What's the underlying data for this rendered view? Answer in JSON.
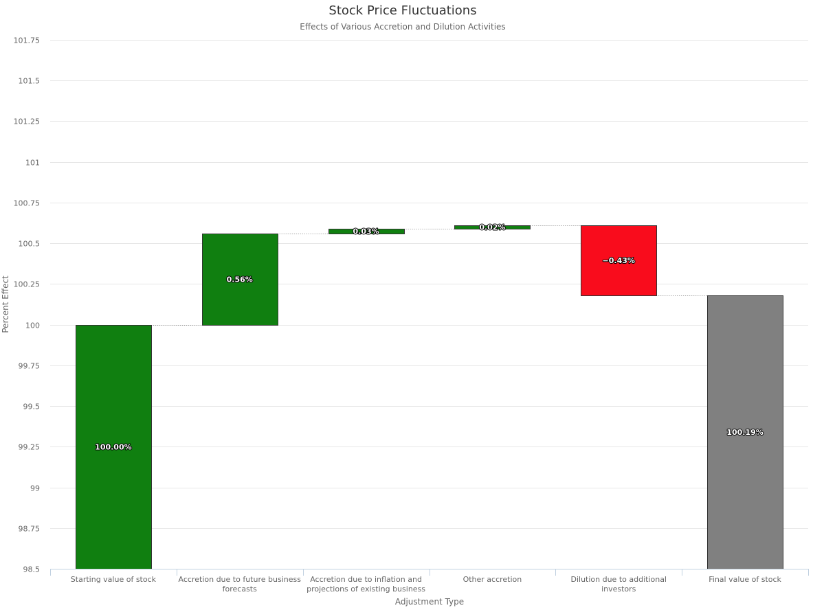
{
  "chart_data": {
    "type": "bar",
    "subtype": "waterfall",
    "title": "Stock Price Fluctuations",
    "subtitle": "Effects of Various Accretion and Dilution Activities",
    "xlabel": "Adjustment Type",
    "ylabel": "Percent Effect",
    "ylim": [
      98.5,
      101.75
    ],
    "yticks": [
      "98.5",
      "98.75",
      "99",
      "99.25",
      "99.5",
      "99.75",
      "100",
      "100.25",
      "100.5",
      "100.75",
      "101",
      "101.25",
      "101.5",
      "101.75"
    ],
    "grid": true,
    "legend": "none",
    "categories": [
      [
        "Starting value of stock"
      ],
      [
        "Accretion due to future business",
        "forecasts"
      ],
      [
        "Accretion due to inflation and",
        "projections of existing business"
      ],
      [
        "Other accretion"
      ],
      [
        "Dilution due to additional",
        "investors"
      ],
      [
        "Final value of stock"
      ]
    ],
    "points": [
      {
        "kind": "total",
        "start": 98.5,
        "end": 100.0,
        "label": "100.00%",
        "color": "#107f10"
      },
      {
        "kind": "delta",
        "start": 100.0,
        "end": 100.56,
        "label": "0.56%",
        "color": "#107f10"
      },
      {
        "kind": "delta",
        "start": 100.56,
        "end": 100.59,
        "label": "0.03%",
        "color": "#107f10"
      },
      {
        "kind": "delta",
        "start": 100.59,
        "end": 100.61,
        "label": "0.02%",
        "color": "#107f10"
      },
      {
        "kind": "delta",
        "start": 100.61,
        "end": 100.18,
        "label": "−0.43%",
        "color": "#f90c1c"
      },
      {
        "kind": "total",
        "start": 98.5,
        "end": 100.18,
        "label": "100.19%",
        "color": "#808080"
      }
    ]
  }
}
